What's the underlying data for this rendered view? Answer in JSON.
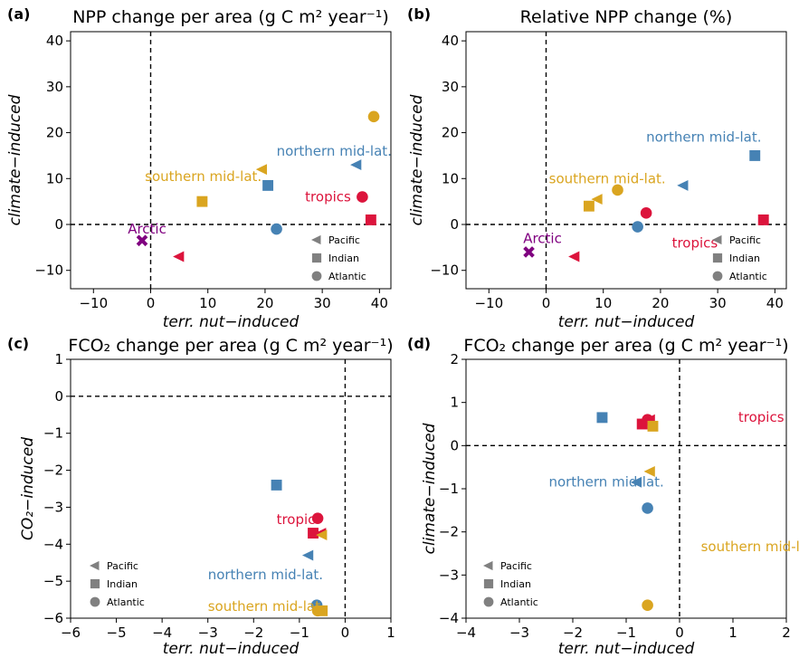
{
  "colors": {
    "tropics": "#DC143C",
    "northern": "#4682B4",
    "southern": "#DAA520",
    "arctic": "#800080",
    "legend_marker": "#808080"
  },
  "legend": [
    "Pacific",
    "Indian",
    "Atlantic"
  ],
  "chart_data": [
    {
      "type": "scatter",
      "panel": "(a)",
      "title": "NPP change per area (g C m² year⁻¹)",
      "xlabel": "terr. nut−induced",
      "ylabel": "climate−induced",
      "xlim": [
        -14,
        42
      ],
      "ylim": [
        -14,
        42
      ],
      "xticks": [
        -10,
        0,
        10,
        20,
        30,
        40
      ],
      "yticks": [
        -10,
        0,
        10,
        20,
        30,
        40
      ],
      "points": [
        {
          "region": "tropics",
          "ocean": "Pacific",
          "x": 5,
          "y": -7
        },
        {
          "region": "tropics",
          "ocean": "Indian",
          "x": 38.5,
          "y": 1
        },
        {
          "region": "tropics",
          "ocean": "Atlantic",
          "x": 37,
          "y": 6
        },
        {
          "region": "northern",
          "ocean": "Pacific",
          "x": 36,
          "y": 13
        },
        {
          "region": "northern",
          "ocean": "Indian",
          "x": 20.5,
          "y": 8.5
        },
        {
          "region": "northern",
          "ocean": "Atlantic",
          "x": 22,
          "y": -1
        },
        {
          "region": "southern",
          "ocean": "Pacific",
          "x": 19.5,
          "y": 12
        },
        {
          "region": "southern",
          "ocean": "Indian",
          "x": 9,
          "y": 5
        },
        {
          "region": "southern",
          "ocean": "Atlantic",
          "x": 39,
          "y": 23.5
        },
        {
          "region": "arctic",
          "ocean": "Arctic",
          "x": -1.5,
          "y": -3.5
        }
      ],
      "annotations": [
        {
          "text": "northern mid-lat.",
          "region": "northern",
          "x": 22,
          "y": 15
        },
        {
          "text": "southern mid-lat.",
          "region": "southern",
          "x": -1,
          "y": 9.5
        },
        {
          "text": "tropics",
          "region": "tropics",
          "x": 27,
          "y": 5
        },
        {
          "text": "Arctic",
          "region": "arctic",
          "x": -4,
          "y": -2
        }
      ]
    },
    {
      "type": "scatter",
      "panel": "(b)",
      "title": "Relative NPP change (%)",
      "xlabel": "terr. nut−induced",
      "ylabel": "climate−induced",
      "xlim": [
        -14,
        42
      ],
      "ylim": [
        -14,
        42
      ],
      "xticks": [
        -10,
        0,
        10,
        20,
        30,
        40
      ],
      "yticks": [
        -10,
        0,
        10,
        20,
        30,
        40
      ],
      "points": [
        {
          "region": "tropics",
          "ocean": "Pacific",
          "x": 5,
          "y": -7
        },
        {
          "region": "tropics",
          "ocean": "Indian",
          "x": 38,
          "y": 1
        },
        {
          "region": "tropics",
          "ocean": "Atlantic",
          "x": 17.5,
          "y": 2.5
        },
        {
          "region": "northern",
          "ocean": "Pacific",
          "x": 24,
          "y": 8.5
        },
        {
          "region": "northern",
          "ocean": "Indian",
          "x": 36.5,
          "y": 15
        },
        {
          "region": "northern",
          "ocean": "Atlantic",
          "x": 16,
          "y": -0.5
        },
        {
          "region": "southern",
          "ocean": "Pacific",
          "x": 9,
          "y": 5.5
        },
        {
          "region": "southern",
          "ocean": "Indian",
          "x": 7.5,
          "y": 4
        },
        {
          "region": "southern",
          "ocean": "Atlantic",
          "x": 12.5,
          "y": 7.5
        },
        {
          "region": "arctic",
          "ocean": "Arctic",
          "x": -3,
          "y": -6
        }
      ],
      "annotations": [
        {
          "text": "northern mid-lat.",
          "region": "northern",
          "x": 17.5,
          "y": 18
        },
        {
          "text": "southern mid-lat.",
          "region": "southern",
          "x": 0.5,
          "y": 9
        },
        {
          "text": "tropics",
          "region": "tropics",
          "x": 22,
          "y": -5
        },
        {
          "text": "Arctic",
          "region": "arctic",
          "x": -4,
          "y": -4
        }
      ]
    },
    {
      "type": "scatter",
      "panel": "(c)",
      "title": "FCO₂ change per area (g C m² year⁻¹)",
      "xlabel": "terr. nut−induced",
      "ylabel": "CO₂−induced",
      "xlim": [
        -6,
        1
      ],
      "ylim": [
        -6,
        1
      ],
      "xticks": [
        -6,
        -5,
        -4,
        -3,
        -2,
        -1,
        0,
        1
      ],
      "yticks": [
        -6,
        -5,
        -4,
        -3,
        -2,
        -1,
        0,
        1
      ],
      "points": [
        {
          "region": "tropics",
          "ocean": "Pacific",
          "x": -0.52,
          "y": -3.7
        },
        {
          "region": "tropics",
          "ocean": "Indian",
          "x": -0.7,
          "y": -3.7
        },
        {
          "region": "tropics",
          "ocean": "Atlantic",
          "x": -0.6,
          "y": -3.3
        },
        {
          "region": "northern",
          "ocean": "Pacific",
          "x": -0.8,
          "y": -4.3
        },
        {
          "region": "northern",
          "ocean": "Indian",
          "x": -1.5,
          "y": -2.4
        },
        {
          "region": "northern",
          "ocean": "Atlantic",
          "x": -0.62,
          "y": -5.65
        },
        {
          "region": "southern",
          "ocean": "Pacific",
          "x": -0.5,
          "y": -3.75
        },
        {
          "region": "southern",
          "ocean": "Indian",
          "x": -0.5,
          "y": -5.8
        },
        {
          "region": "southern",
          "ocean": "Atlantic",
          "x": -0.6,
          "y": -5.8
        }
      ],
      "annotations": [
        {
          "text": "tropic",
          "region": "tropics",
          "x": -1.5,
          "y": -3.45
        },
        {
          "text": "northern mid-lat.",
          "region": "northern",
          "x": -3.0,
          "y": -4.95
        },
        {
          "text": "southern mid-lat.",
          "region": "southern",
          "x": -3.0,
          "y": -5.8
        }
      ]
    },
    {
      "type": "scatter",
      "panel": "(d)",
      "title": "FCO₂ change per area (g C m² year⁻¹)",
      "xlabel": "terr. nut−induced",
      "ylabel": "climate−induced",
      "xlim": [
        -4,
        2
      ],
      "ylim": [
        -4,
        2
      ],
      "xticks": [
        -4,
        -3,
        -2,
        -1,
        0,
        1,
        2
      ],
      "yticks": [
        -4,
        -3,
        -2,
        -1,
        0,
        1,
        2
      ],
      "points": [
        {
          "region": "tropics",
          "ocean": "Pacific",
          "x": -0.55,
          "y": 0.6
        },
        {
          "region": "tropics",
          "ocean": "Indian",
          "x": -0.7,
          "y": 0.5
        },
        {
          "region": "tropics",
          "ocean": "Atlantic",
          "x": -0.6,
          "y": 0.6
        },
        {
          "region": "northern",
          "ocean": "Pacific",
          "x": -0.8,
          "y": -0.85
        },
        {
          "region": "northern",
          "ocean": "Indian",
          "x": -1.45,
          "y": 0.65
        },
        {
          "region": "northern",
          "ocean": "Atlantic",
          "x": -0.6,
          "y": -1.45
        },
        {
          "region": "southern",
          "ocean": "Pacific",
          "x": -0.55,
          "y": -0.6
        },
        {
          "region": "southern",
          "ocean": "Indian",
          "x": -0.5,
          "y": 0.45
        },
        {
          "region": "southern",
          "ocean": "Atlantic",
          "x": -0.6,
          "y": -3.7
        }
      ],
      "annotations": [
        {
          "text": "tropics",
          "region": "tropics",
          "x": 1.1,
          "y": 0.55
        },
        {
          "text": "northern mid-lat.",
          "region": "northern",
          "x": -2.45,
          "y": -0.95
        },
        {
          "text": "southern mid-lat.",
          "region": "southern",
          "x": 0.4,
          "y": -2.45
        }
      ]
    }
  ]
}
